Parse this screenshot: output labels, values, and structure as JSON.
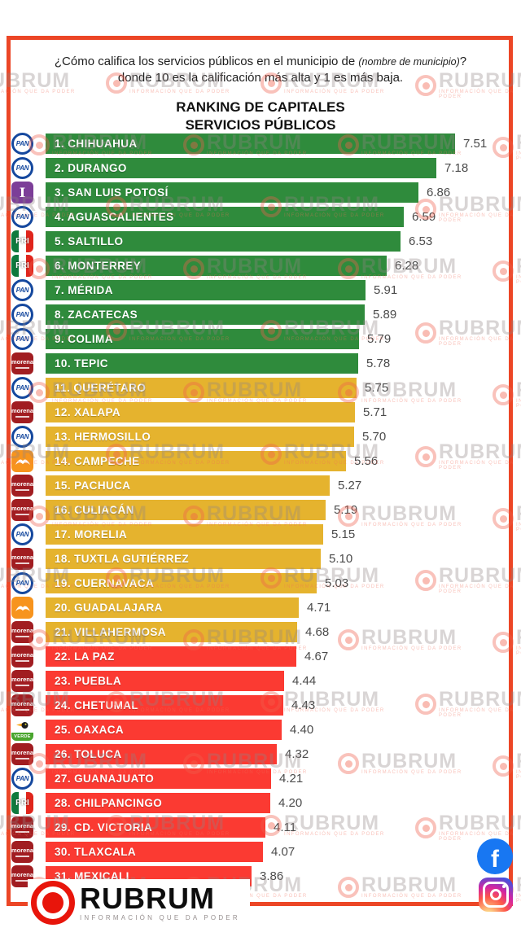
{
  "page": {
    "border_color": "#ec4626",
    "background": "#ffffff"
  },
  "header": {
    "question": {
      "part1": "¿Cómo califica los servicios públicos en el municipio de ",
      "italic": "(nombre de municipio)",
      "part2": "? donde 10 es la calificación más alta y 1 es más baja."
    },
    "title_line1": "RANKING DE CAPITALES",
    "title_line2": "SERVICIOS PÚBLICOS"
  },
  "chart_data": {
    "type": "bar",
    "orientation": "horizontal",
    "title": "RANKING DE CAPITALES SERVICIOS PÚBLICOS",
    "value_range": [
      1,
      10
    ],
    "colors": {
      "high": "#2f8b3c",
      "mid": "#e5b32e",
      "low": "#fb3a32"
    },
    "items": [
      {
        "rank": 1,
        "city": "CHIHUAHUA",
        "party": "PAN",
        "value": 7.51,
        "value_text": "7.51",
        "tier": "high"
      },
      {
        "rank": 2,
        "city": "DURANGO",
        "party": "PAN",
        "value": 7.18,
        "value_text": "7.18",
        "tier": "high"
      },
      {
        "rank": 3,
        "city": "SAN LUIS POTOSÍ",
        "party": "IND",
        "value": 6.86,
        "value_text": "6.86",
        "tier": "high"
      },
      {
        "rank": 4,
        "city": "AGUASCALIENTES",
        "party": "PAN",
        "value": 6.59,
        "value_text": "6.59",
        "tier": "high"
      },
      {
        "rank": 5,
        "city": "SALTILLO",
        "party": "PRI",
        "value": 6.53,
        "value_text": "6.53",
        "tier": "high"
      },
      {
        "rank": 6,
        "city": "MONTERREY",
        "party": "PRI",
        "value": 6.28,
        "value_text": "6.28",
        "tier": "high"
      },
      {
        "rank": 7,
        "city": "MÉRIDA",
        "party": "PAN",
        "value": 5.91,
        "value_text": "5.91",
        "tier": "high"
      },
      {
        "rank": 8,
        "city": "ZACATECAS",
        "party": "PAN",
        "value": 5.89,
        "value_text": "5.89",
        "tier": "high"
      },
      {
        "rank": 9,
        "city": "COLIMA",
        "party": "PAN",
        "value": 5.79,
        "value_text": "5.79",
        "tier": "high"
      },
      {
        "rank": 10,
        "city": "TEPIC",
        "party": "MORENA",
        "value": 5.78,
        "value_text": "5.78",
        "tier": "high"
      },
      {
        "rank": 11,
        "city": "QUERÉTARO",
        "party": "PAN",
        "value": 5.75,
        "value_text": "5.75",
        "tier": "mid"
      },
      {
        "rank": 12,
        "city": "XALAPA",
        "party": "MORENA",
        "value": 5.71,
        "value_text": "5.71",
        "tier": "mid"
      },
      {
        "rank": 13,
        "city": "HERMOSILLO",
        "party": "PAN",
        "value": 5.7,
        "value_text": "5.70",
        "tier": "mid"
      },
      {
        "rank": 14,
        "city": "CAMPECHE",
        "party": "MC",
        "value": 5.56,
        "value_text": "5.56",
        "tier": "mid"
      },
      {
        "rank": 15,
        "city": "PACHUCA",
        "party": "MORENA",
        "value": 5.27,
        "value_text": "5.27",
        "tier": "mid"
      },
      {
        "rank": 16,
        "city": "CULIACÁN",
        "party": "MORENA",
        "value": 5.19,
        "value_text": "5.19",
        "tier": "mid"
      },
      {
        "rank": 17,
        "city": "MORELIA",
        "party": "PAN",
        "value": 5.15,
        "value_text": "5.15",
        "tier": "mid"
      },
      {
        "rank": 18,
        "city": "TUXTLA GUTIÉRREZ",
        "party": "MORENA",
        "value": 5.1,
        "value_text": "5.10",
        "tier": "mid"
      },
      {
        "rank": 19,
        "city": "CUERNAVACA",
        "party": "PAN",
        "value": 5.03,
        "value_text": "5.03",
        "tier": "mid"
      },
      {
        "rank": 20,
        "city": "GUADALAJARA",
        "party": "MC",
        "value": 4.71,
        "value_text": "4.71",
        "tier": "mid"
      },
      {
        "rank": 21,
        "city": "VILLAHERMOSA",
        "party": "MORENA",
        "value": 4.68,
        "value_text": "4.68",
        "tier": "mid"
      },
      {
        "rank": 22,
        "city": "LA PAZ",
        "party": "MORENA",
        "value": 4.67,
        "value_text": "4.67",
        "tier": "low"
      },
      {
        "rank": 23,
        "city": "PUEBLA",
        "party": "MORENA",
        "value": 4.44,
        "value_text": "4.44",
        "tier": "low"
      },
      {
        "rank": 24,
        "city": "CHETUMAL",
        "party": "MORENA",
        "value": 4.43,
        "value_text": "4.43",
        "tier": "low"
      },
      {
        "rank": 25,
        "city": "OAXACA",
        "party": "PVEM",
        "value": 4.4,
        "value_text": "4.40",
        "tier": "low"
      },
      {
        "rank": 26,
        "city": "TOLUCA",
        "party": "MORENA",
        "value": 4.32,
        "value_text": "4.32",
        "tier": "low"
      },
      {
        "rank": 27,
        "city": "GUANAJUATO",
        "party": "PAN",
        "value": 4.21,
        "value_text": "4.21",
        "tier": "low"
      },
      {
        "rank": 28,
        "city": "CHILPANCINGO",
        "party": "PRI",
        "value": 4.2,
        "value_text": "4.20",
        "tier": "low"
      },
      {
        "rank": 29,
        "city": "CD. VICTORIA",
        "party": "MORENA",
        "value": 4.11,
        "value_text": "4.11",
        "tier": "low"
      },
      {
        "rank": 30,
        "city": "TLAXCALA",
        "party": "MORENA",
        "value": 4.07,
        "value_text": "4.07",
        "tier": "low"
      },
      {
        "rank": 31,
        "city": "MEXICALI",
        "party": "MORENA",
        "value": 3.86,
        "value_text": "3.86",
        "tier": "low"
      }
    ]
  },
  "parties": {
    "PAN": {
      "label": "PAN",
      "color": "#15489e"
    },
    "PRI": {
      "label": "PRI",
      "colors": [
        "#0e7a3d",
        "#ffffff",
        "#e0251c"
      ]
    },
    "MORENA": {
      "label": "morena",
      "color": "#a11d21"
    },
    "MC": {
      "label": "MC",
      "color": "#f7941d"
    },
    "PVEM": {
      "label": "VERDE",
      "color": "#4aa52e"
    },
    "IND": {
      "label": "I",
      "color": "#7c3e98"
    }
  },
  "watermark": {
    "text": "RUBRUM",
    "tagline": "INFORMACIÓN QUE DA PODER"
  },
  "footer": {
    "logo_text": "RUBRUM",
    "logo_tagline": "INFORMACIÓN QUE DA PODER"
  },
  "social": {
    "facebook_color": "#1877f2",
    "facebook_glyph": "f",
    "instagram_gradient": [
      "#fdf497",
      "#fd5949",
      "#d6249f",
      "#285AEB"
    ]
  }
}
